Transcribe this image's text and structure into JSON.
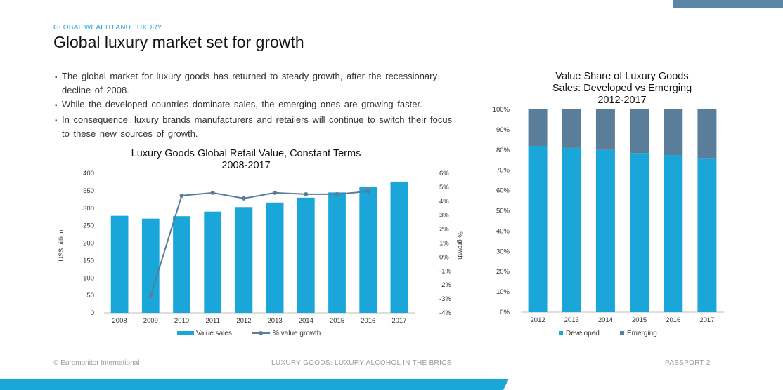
{
  "header": {
    "section_label": "GLOBAL WEALTH AND LUXURY",
    "title": "Global luxury market set for growth"
  },
  "bullets": [
    "The global market for luxury goods has returned to steady growth, after the recessionary decline of 2008.",
    "While the developed countries dominate sales, the emerging ones are growing faster.",
    "In consequence, luxury brands manufacturers and retailers will continue to switch their focus to these new sources of growth."
  ],
  "footer": {
    "left": "© Euromonitor International",
    "middle": "LUXURY GOODS: LUXURY ALCOHOL IN THE BRICS",
    "right": "PASSPORT   2"
  },
  "colors": {
    "bar": "#1aa6d9",
    "line": "#5a7d9a",
    "developed": "#1aa6d9",
    "emerging": "#5a7d9a",
    "accent": "#29a9d6"
  },
  "chart_data": [
    {
      "type": "bar",
      "title_lines": [
        "Luxury Goods Global Retail Value, Constant Terms",
        "2008-2017"
      ],
      "categories": [
        "2008",
        "2009",
        "2010",
        "2011",
        "2012",
        "2013",
        "2014",
        "2015",
        "2016",
        "2017"
      ],
      "series": [
        {
          "name": "Value sales",
          "type": "bar",
          "axis": "left",
          "values": [
            278,
            270,
            277,
            290,
            303,
            316,
            330,
            345,
            360,
            376
          ]
        },
        {
          "name": "% value growth",
          "type": "line",
          "axis": "right",
          "values": [
            null,
            -2.8,
            4.4,
            4.6,
            4.2,
            4.6,
            4.5,
            4.5,
            4.7,
            null
          ]
        }
      ],
      "ylabel": "US$ billion",
      "ylim": [
        0,
        400
      ],
      "yticks": [
        "0",
        "50",
        "100",
        "150",
        "200",
        "250",
        "300",
        "350",
        "400"
      ],
      "y2label": "% growth",
      "y2lim": [
        -4,
        6
      ],
      "y2ticks": [
        "-4%",
        "-3%",
        "-2%",
        "-1%",
        "0%",
        "1%",
        "2%",
        "3%",
        "4%",
        "5%",
        "6%"
      ],
      "legend": [
        "Value sales",
        "% value growth"
      ]
    },
    {
      "type": "bar",
      "stacked": true,
      "title_lines": [
        "Value Share of Luxury Goods",
        "Sales: Developed vs Emerging",
        "2012-2017"
      ],
      "categories": [
        "2012",
        "2013",
        "2014",
        "2015",
        "2016",
        "2017"
      ],
      "series": [
        {
          "name": "Developed",
          "values": [
            82,
            81,
            80,
            78.5,
            77.5,
            76
          ]
        },
        {
          "name": "Emerging",
          "values": [
            18,
            19,
            20,
            21.5,
            22.5,
            24
          ]
        }
      ],
      "ylim": [
        0,
        100
      ],
      "yticks": [
        "0%",
        "10%",
        "20%",
        "30%",
        "40%",
        "50%",
        "60%",
        "70%",
        "80%",
        "90%",
        "100%"
      ],
      "legend": [
        "Developed",
        "Emerging"
      ]
    }
  ]
}
